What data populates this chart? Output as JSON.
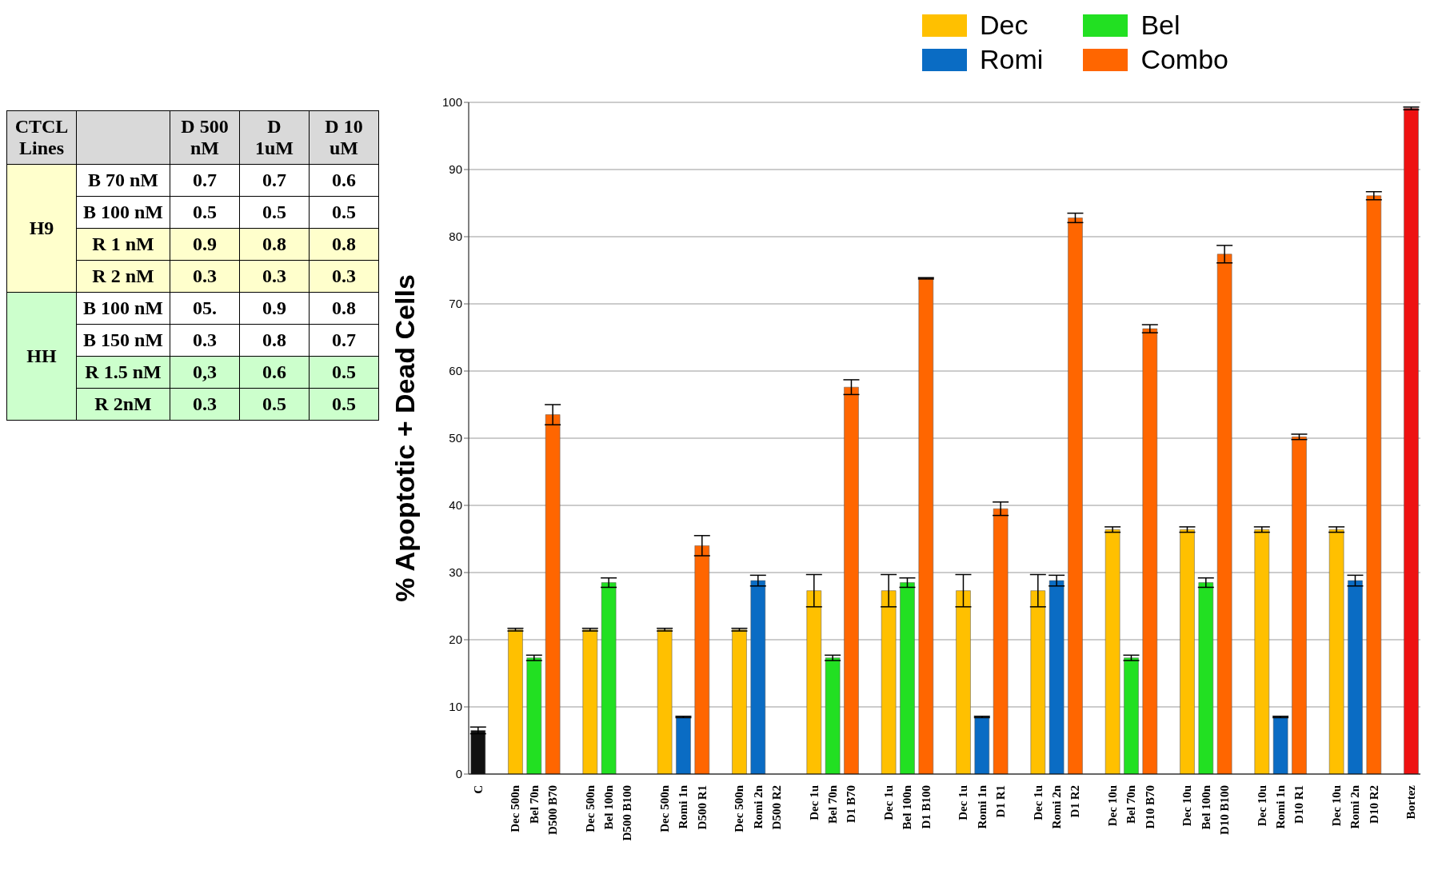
{
  "chart_data": [
    {
      "type": "bar",
      "ylabel": "% Apoptotic + Dead Cells",
      "stacked": true,
      "grid": "y",
      "legend": "top right",
      "categories": [
        "C",
        null,
        "Dec 500n",
        "Bel 70n",
        "D500 B70",
        null,
        "Dec 500n",
        "Bel 100n",
        "D500 B100",
        null,
        "Dec 500n",
        "Romi 1n",
        "D500 R1",
        null,
        "Dec 500n",
        "Romi 2n",
        "D500 R2",
        null,
        "Dec 1u",
        "Bel 70n",
        "D1 B70",
        null,
        "Dec 1u",
        "Bel 100n",
        "D1 B100",
        null,
        "Dec 1u",
        "Romi 1n",
        "D1 R1",
        null,
        "Dec 1u",
        "Romi 2n",
        "D1 R2",
        null,
        "Dec 10u",
        "Bel 70n",
        "D10 B70",
        null,
        "Dec 10u",
        "Bel 100n",
        "D10 B100",
        null,
        "Dec 10u",
        "Romi 1n",
        "D10 R1",
        null,
        "Dec 10u",
        "Romi 2n",
        "D10 R2",
        null,
        "Bortez"
      ],
      "ylim": [
        0,
        100
      ],
      "yticks": [
        0,
        10,
        20,
        30,
        40,
        50,
        60,
        70,
        80,
        90,
        100
      ],
      "series": [
        {
          "name": "Dec",
          "color": "#ffc000",
          "values": [
            null,
            null,
            21.5,
            null,
            null,
            null,
            21.5,
            null,
            null,
            null,
            21.5,
            null,
            null,
            null,
            21.5,
            null,
            null,
            null,
            27.3,
            null,
            null,
            null,
            27.3,
            null,
            null,
            null,
            27.3,
            null,
            null,
            null,
            27.3,
            null,
            null,
            null,
            36.4,
            null,
            null,
            null,
            36.4,
            null,
            null,
            null,
            36.4,
            null,
            null,
            null,
            36.4,
            null,
            null,
            null,
            null
          ],
          "errors": [
            null,
            null,
            0.2,
            null,
            null,
            null,
            0.2,
            null,
            null,
            null,
            0.2,
            null,
            null,
            null,
            0.2,
            null,
            null,
            null,
            2.4,
            null,
            null,
            null,
            2.4,
            null,
            null,
            null,
            2.4,
            null,
            null,
            null,
            2.4,
            null,
            null,
            null,
            0.4,
            null,
            null,
            null,
            0.4,
            null,
            null,
            null,
            0.4,
            null,
            null,
            null,
            0.4,
            null,
            null,
            null,
            null
          ]
        },
        {
          "name": "Bel",
          "color": "#22e022",
          "values": [
            null,
            null,
            null,
            17.3,
            null,
            null,
            null,
            28.5,
            null,
            null,
            null,
            null,
            null,
            null,
            null,
            null,
            null,
            null,
            null,
            17.3,
            null,
            null,
            null,
            28.5,
            null,
            null,
            null,
            null,
            null,
            null,
            null,
            null,
            null,
            null,
            null,
            17.3,
            null,
            null,
            null,
            28.5,
            null,
            null,
            null,
            null,
            null,
            null,
            null,
            null,
            null,
            null,
            null
          ],
          "errors": [
            null,
            null,
            null,
            0.4,
            null,
            null,
            null,
            0.7,
            null,
            null,
            null,
            null,
            null,
            null,
            null,
            null,
            null,
            null,
            null,
            0.4,
            null,
            null,
            null,
            0.7,
            null,
            null,
            null,
            null,
            null,
            null,
            null,
            null,
            null,
            null,
            null,
            0.4,
            null,
            null,
            null,
            0.7,
            null,
            null,
            null,
            null,
            null,
            null,
            null,
            null,
            null,
            null,
            null
          ]
        },
        {
          "name": "Romi",
          "color": "#0a6cc4",
          "values": [
            null,
            null,
            null,
            null,
            null,
            null,
            null,
            null,
            null,
            null,
            null,
            8.5,
            null,
            null,
            null,
            28.8,
            null,
            null,
            null,
            null,
            null,
            null,
            null,
            null,
            null,
            null,
            null,
            8.5,
            null,
            null,
            null,
            28.8,
            null,
            null,
            null,
            null,
            null,
            null,
            null,
            null,
            null,
            null,
            null,
            8.5,
            null,
            null,
            null,
            28.8,
            null,
            null,
            null
          ],
          "errors": [
            null,
            null,
            null,
            null,
            null,
            null,
            null,
            null,
            null,
            null,
            null,
            0.1,
            null,
            null,
            null,
            0.8,
            null,
            null,
            null,
            null,
            null,
            null,
            null,
            null,
            null,
            null,
            null,
            0.1,
            null,
            null,
            null,
            0.8,
            null,
            null,
            null,
            null,
            null,
            null,
            null,
            null,
            null,
            null,
            null,
            0.1,
            null,
            null,
            null,
            0.8,
            null,
            null,
            null
          ]
        },
        {
          "name": "Combo",
          "color": "#ff6600",
          "values": [
            null,
            null,
            null,
            null,
            53.5,
            null,
            null,
            null,
            null,
            null,
            null,
            null,
            34,
            null,
            null,
            null,
            null,
            null,
            null,
            null,
            57.6,
            null,
            null,
            null,
            73.8,
            null,
            null,
            null,
            39.5,
            null,
            null,
            null,
            82.8,
            null,
            null,
            null,
            66.3,
            null,
            null,
            null,
            77.4,
            null,
            null,
            null,
            50.2,
            null,
            null,
            null,
            86.1,
            null,
            null
          ],
          "errors": [
            null,
            null,
            null,
            null,
            1.5,
            null,
            null,
            null,
            null,
            null,
            null,
            null,
            1.5,
            null,
            null,
            null,
            null,
            null,
            null,
            null,
            1.1,
            null,
            null,
            null,
            0.1,
            null,
            null,
            null,
            1,
            null,
            null,
            null,
            0.7,
            null,
            null,
            null,
            0.6,
            null,
            null,
            null,
            1.3,
            null,
            null,
            null,
            0.4,
            null,
            null,
            null,
            0.6,
            null,
            null
          ]
        },
        {
          "color": "#111111",
          "values": [
            6.5,
            null,
            null,
            null,
            null,
            null,
            null,
            null,
            null,
            null,
            null,
            null,
            null,
            null,
            null,
            null,
            null,
            null,
            null,
            null,
            null,
            null,
            null,
            null,
            null,
            null,
            null,
            null,
            null,
            null,
            null,
            null,
            null,
            null,
            null,
            null,
            null,
            null,
            null,
            null,
            null,
            null,
            null,
            null,
            null,
            null,
            null,
            null,
            null,
            null,
            null
          ],
          "errors": [
            0.5,
            null,
            null,
            null,
            null,
            null,
            null,
            null,
            null,
            null,
            null,
            null,
            null,
            null,
            null,
            null,
            null,
            null,
            null,
            null,
            null,
            null,
            null,
            null,
            null,
            null,
            null,
            null,
            null,
            null,
            null,
            null,
            null,
            null,
            null,
            null,
            null,
            null,
            null,
            null,
            null,
            null,
            null,
            null,
            null,
            null,
            null,
            null,
            null,
            null,
            null
          ]
        },
        {
          "color": "#ee1111",
          "values": [
            null,
            null,
            null,
            null,
            null,
            null,
            null,
            null,
            null,
            null,
            null,
            null,
            null,
            null,
            null,
            null,
            null,
            null,
            null,
            null,
            null,
            null,
            null,
            null,
            null,
            null,
            null,
            null,
            null,
            null,
            null,
            null,
            null,
            null,
            null,
            null,
            null,
            null,
            null,
            null,
            null,
            null,
            null,
            null,
            null,
            null,
            null,
            null,
            null,
            null,
            99.1
          ],
          "errors": [
            null,
            null,
            null,
            null,
            null,
            null,
            null,
            null,
            null,
            null,
            null,
            null,
            null,
            null,
            null,
            null,
            null,
            null,
            null,
            null,
            null,
            null,
            null,
            null,
            null,
            null,
            null,
            null,
            null,
            null,
            null,
            null,
            null,
            null,
            null,
            null,
            null,
            null,
            null,
            null,
            null,
            null,
            null,
            null,
            null,
            null,
            null,
            null,
            null,
            null,
            0.2
          ]
        }
      ]
    },
    {
      "type": "other",
      "colors": [
        "#ffffcc",
        "#ccffcc"
      ],
      "annotations": [
        "CTCL Lines",
        "D 500 nM",
        "D 1uM",
        "D 10 uM",
        "H9",
        "B 70 nM",
        "0.7",
        "0.7",
        "0.6",
        "B 100 nM",
        "0.5",
        "0.5",
        "0.5",
        "R 1 nM",
        "0.9",
        "0.8",
        "0.8",
        "R 2 nM",
        "0.3",
        "0.3",
        "0.3",
        "HH",
        "B 100 nM",
        "05.",
        "0.9",
        "0.8",
        "B 150 nM",
        "0.3",
        "0.8",
        "0.7",
        "R 1.5 nM",
        "0,3",
        "0.6",
        "0.5",
        "R 2nM",
        "0.3",
        "0.5",
        "0.5"
      ]
    }
  ]
}
